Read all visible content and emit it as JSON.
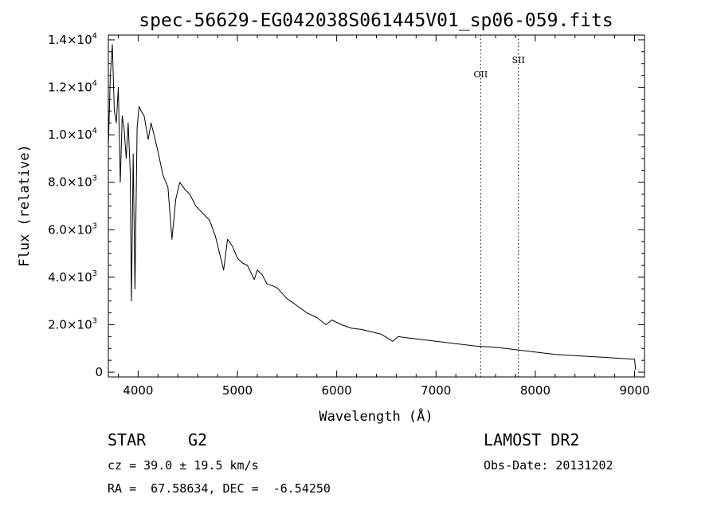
{
  "chart_data": {
    "type": "line",
    "title": "spec-56629-EG042038S061445V01_sp06-059.fits",
    "xlabel": "Wavelength (Å)",
    "ylabel": "Flux (relative)",
    "xlim": [
      3700,
      9100
    ],
    "ylim": [
      -200,
      14200
    ],
    "x_ticks": [
      4000,
      5000,
      6000,
      7000,
      8000,
      9000
    ],
    "x_tick_labels": [
      "4000",
      "5000",
      "6000",
      "7000",
      "8000",
      "9000"
    ],
    "y_ticks": [
      0,
      2000,
      4000,
      6000,
      8000,
      10000,
      12000,
      14000
    ],
    "y_tick_labels": [
      {
        "mant": "0",
        "exp": ""
      },
      {
        "mant": "2.0×10",
        "exp": "3"
      },
      {
        "mant": "4.0×10",
        "exp": "3"
      },
      {
        "mant": "6.0×10",
        "exp": "3"
      },
      {
        "mant": "8.0×10",
        "exp": "3"
      },
      {
        "mant": "1.0×10",
        "exp": "4"
      },
      {
        "mant": "1.2×10",
        "exp": "4"
      },
      {
        "mant": "1.4×10",
        "exp": "4"
      }
    ],
    "grid": false,
    "series": [
      {
        "color": "#000000",
        "x": [
          3700,
          3720,
          3740,
          3760,
          3780,
          3800,
          3820,
          3840,
          3860,
          3880,
          3900,
          3920,
          3933,
          3950,
          3968,
          3990,
          4010,
          4030,
          4060,
          4101,
          4130,
          4160,
          4200,
          4250,
          4300,
          4340,
          4380,
          4420,
          4470,
          4520,
          4580,
          4650,
          4720,
          4780,
          4861,
          4900,
          4950,
          5000,
          5050,
          5100,
          5170,
          5200,
          5250,
          5300,
          5350,
          5400,
          5500,
          5600,
          5700,
          5800,
          5893,
          5950,
          6050,
          6150,
          6250,
          6350,
          6450,
          6563,
          6620,
          6700,
          6800,
          6900,
          7000,
          7200,
          7400,
          7600,
          7800,
          8000,
          8200,
          8400,
          8600,
          8800,
          9000,
          9010
        ],
        "y": [
          9500,
          12500,
          13800,
          11000,
          10500,
          12000,
          8000,
          10800,
          10200,
          9000,
          10500,
          8500,
          3000,
          9200,
          3500,
          10300,
          11200,
          11000,
          10800,
          9800,
          10500,
          10000,
          9300,
          8300,
          7800,
          5600,
          7300,
          8000,
          7700,
          7500,
          7000,
          6700,
          6400,
          5700,
          4300,
          5600,
          5300,
          4800,
          4600,
          4500,
          3900,
          4300,
          4100,
          3700,
          3650,
          3550,
          3100,
          2800,
          2500,
          2300,
          2000,
          2200,
          2000,
          1850,
          1800,
          1700,
          1600,
          1300,
          1500,
          1450,
          1400,
          1350,
          1300,
          1200,
          1100,
          1050,
          950,
          850,
          750,
          700,
          650,
          600,
          550,
          100
        ]
      }
    ],
    "lines": [
      {
        "label": "OII",
        "x": 7450
      },
      {
        "label": "SII",
        "x": 7830
      }
    ]
  },
  "info": {
    "object_class": "STAR",
    "subclass": "G2",
    "redshift": "cz = 39.0 ± 19.5 km/s",
    "coords": "RA =  67.58634, DEC =  -6.54250",
    "survey": "LAMOST DR2",
    "obs_date": "Obs-Date: 20131202"
  }
}
